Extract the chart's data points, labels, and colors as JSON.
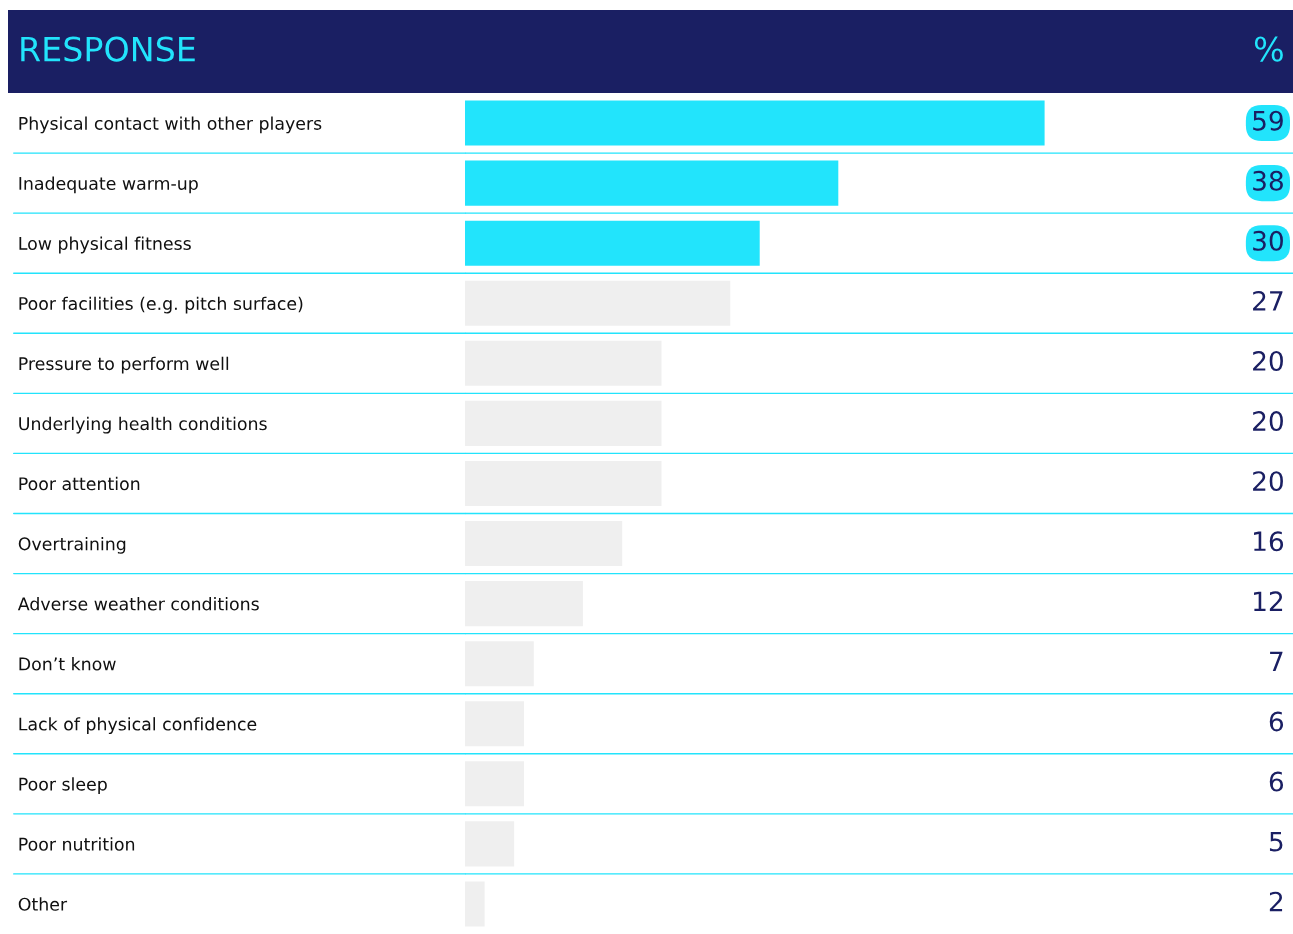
{
  "chart_data": {
    "type": "bar",
    "orientation": "horizontal",
    "ylabel": "RESPONSE",
    "annotations": [
      "%"
    ],
    "categories": [
      "Physical contact with other players",
      "Inadequate warm-up",
      "Low physical fitness",
      "Poor facilities (e.g. pitch surface)",
      "Pressure to perform well",
      "Underlying health conditions",
      "Poor attention",
      "Overtraining",
      "Adverse weather conditions",
      "Don’t know",
      "Lack of physical confidence",
      "Poor sleep",
      "Poor nutrition",
      "Other"
    ],
    "values": [
      59,
      38,
      30,
      27,
      20,
      20,
      20,
      16,
      12,
      7,
      6,
      6,
      5,
      2
    ],
    "colors": [
      "#22e4fc",
      "#22e4fc",
      "#22e4fc",
      "#efefef",
      "#efefef",
      "#efefef",
      "#efefef",
      "#efefef",
      "#efefef",
      "#efefef",
      "#efefef",
      "#efefef",
      "#efefef",
      "#efefef"
    ],
    "data_labels": true,
    "grid": true
  }
}
